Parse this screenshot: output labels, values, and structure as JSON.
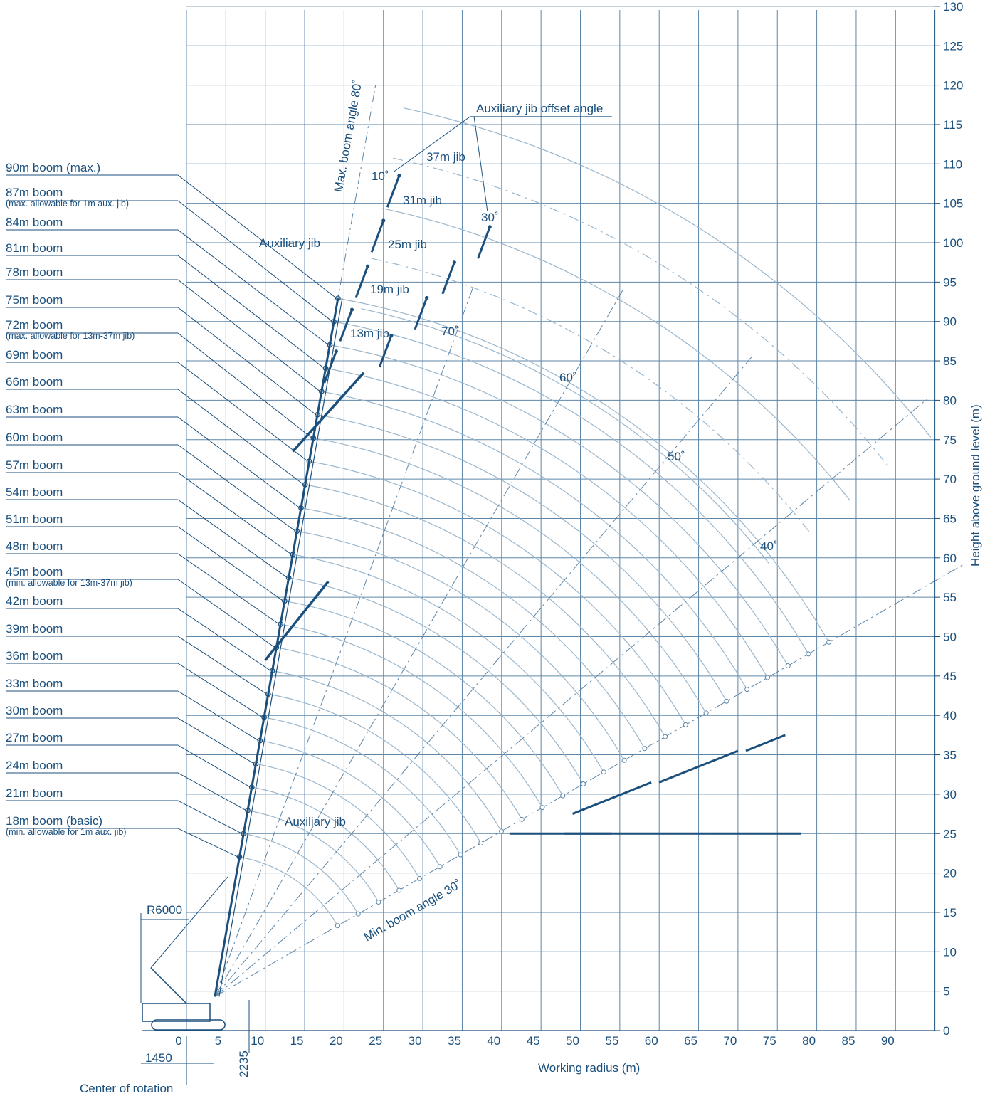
{
  "diagram": {
    "x_axis": {
      "label": "Working radius (m)",
      "ticks": [
        0,
        5,
        10,
        15,
        20,
        25,
        30,
        35,
        40,
        45,
        50,
        55,
        60,
        65,
        70,
        75,
        80,
        85,
        90
      ],
      "range": [
        0,
        95
      ]
    },
    "y_axis": {
      "label": "Height above ground level (m)",
      "ticks": [
        0,
        5,
        10,
        15,
        20,
        25,
        30,
        35,
        40,
        45,
        50,
        55,
        60,
        65,
        70,
        75,
        80,
        85,
        90,
        95,
        100,
        105,
        110,
        115,
        120,
        125,
        130
      ],
      "range": [
        0,
        130
      ]
    },
    "boom_labels": [
      {
        "text": "90m boom (max.)",
        "sub": ""
      },
      {
        "text": "87m boom",
        "sub": "(max. allowable for 1m aux. jib)"
      },
      {
        "text": "84m boom",
        "sub": ""
      },
      {
        "text": "81m boom",
        "sub": ""
      },
      {
        "text": "78m boom",
        "sub": ""
      },
      {
        "text": "75m boom",
        "sub": ""
      },
      {
        "text": "72m boom",
        "sub": "(max. allowable for 13m-37m jib)"
      },
      {
        "text": "69m boom",
        "sub": ""
      },
      {
        "text": "66m boom",
        "sub": ""
      },
      {
        "text": "63m boom",
        "sub": ""
      },
      {
        "text": "60m boom",
        "sub": ""
      },
      {
        "text": "57m boom",
        "sub": ""
      },
      {
        "text": "54m boom",
        "sub": ""
      },
      {
        "text": "51m boom",
        "sub": ""
      },
      {
        "text": "48m boom",
        "sub": ""
      },
      {
        "text": "45m boom",
        "sub": "(min. allowable for 13m-37m jib)"
      },
      {
        "text": "42m boom",
        "sub": ""
      },
      {
        "text": "39m boom",
        "sub": ""
      },
      {
        "text": "36m boom",
        "sub": ""
      },
      {
        "text": "33m boom",
        "sub": ""
      },
      {
        "text": "30m boom",
        "sub": ""
      },
      {
        "text": "27m boom",
        "sub": ""
      },
      {
        "text": "24m boom",
        "sub": ""
      },
      {
        "text": "21m boom",
        "sub": ""
      },
      {
        "text": "18m boom (basic)",
        "sub": "(min. allowable for 1m aux. jib)"
      }
    ],
    "jib_labels": [
      "37m jib",
      "31m jib",
      "25m jib",
      "19m jib",
      "13m jib"
    ],
    "annotations": {
      "aux_jib_offset": "Auxiliary jib offset angle",
      "offset_10": "10˚",
      "offset_30": "30˚",
      "aux_jib_top": "Auxiliary jib",
      "aux_jib_bottom": "Auxiliary jib",
      "max_boom_angle": "Max. boom angle 80˚",
      "min_boom_angle": "Min. boom angle 30˚",
      "angle_70": "70˚",
      "angle_60": "60˚",
      "angle_50": "50˚",
      "angle_40": "40˚",
      "r6000": "R6000",
      "dim_1450": "1450",
      "dim_2235": "2235",
      "center_of_rotation": "Center of rotation"
    },
    "colors": {
      "ink": "#1b4f7c",
      "grid": "#5d86a8",
      "arc": "#9ab6cc"
    }
  }
}
